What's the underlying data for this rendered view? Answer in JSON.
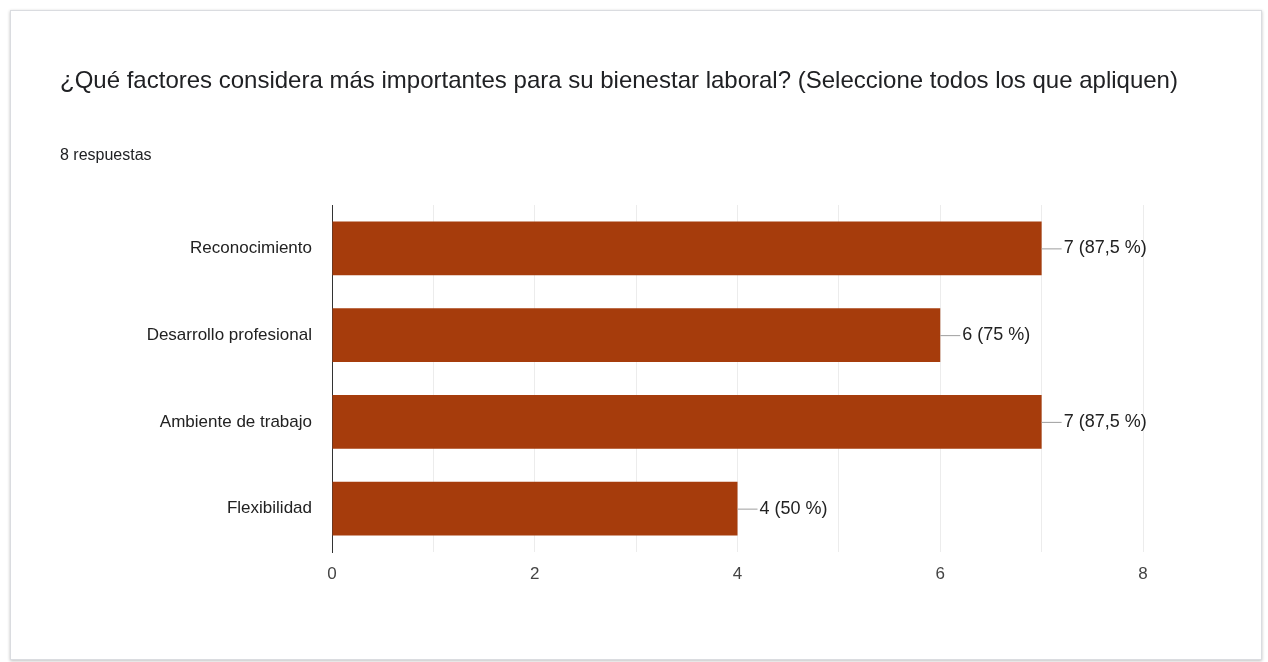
{
  "chart_data": {
    "type": "bar",
    "orientation": "horizontal",
    "title": "¿Qué factores considera más importantes para su bienestar laboral? (Seleccione todos los que apliquen)",
    "subtitle": "8 respuestas",
    "categories": [
      "Reconocimiento",
      "Desarrollo profesional",
      "Ambiente de trabajo",
      "Flexibilidad"
    ],
    "values": [
      7,
      6,
      7,
      4
    ],
    "color": "#a63c0c",
    "value_labels": [
      "7 (87,5 %)",
      "6 (75 %)",
      "7 (87,5 %)",
      "4 (50 %)"
    ],
    "xlim": [
      0,
      8
    ],
    "xticks": [
      0,
      {
        "value": 1,
        "label": null
      },
      2,
      {
        "value": 3,
        "label": null
      },
      4,
      {
        "value": 5,
        "label": null
      },
      6,
      {
        "value": 7,
        "label": null
      },
      8
    ],
    "grid": "x",
    "legend": false
  }
}
